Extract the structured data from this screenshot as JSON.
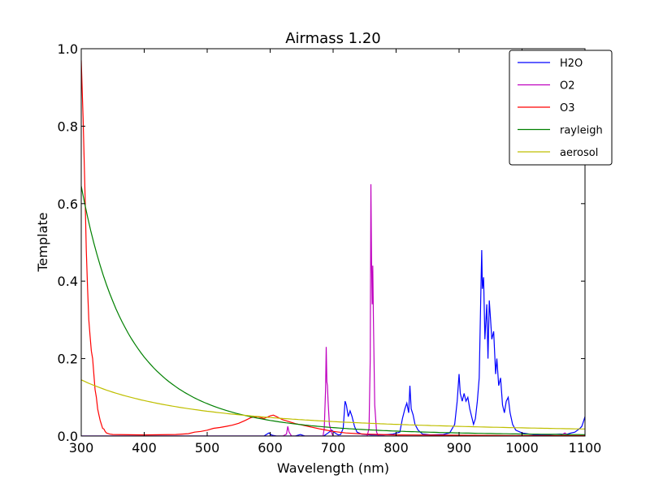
{
  "chart_data": {
    "type": "line",
    "title": "Airmass 1.20",
    "xlabel": "Wavelength (nm)",
    "ylabel": "Template",
    "xlim": [
      300,
      1100
    ],
    "ylim": [
      0.0,
      1.0
    ],
    "xticks": [
      "300",
      "400",
      "500",
      "600",
      "700",
      "800",
      "900",
      "1000",
      "1100"
    ],
    "yticks": [
      "0.0",
      "0.2",
      "0.4",
      "0.6",
      "0.8",
      "1.0"
    ],
    "legend_position": "top-right",
    "grid": false,
    "series": [
      {
        "name": "H2O",
        "color": "#0000ff",
        "points": [
          [
            300,
            0.0
          ],
          [
            580,
            0.0
          ],
          [
            590,
            0.0
          ],
          [
            598,
            0.008
          ],
          [
            603,
            0.002
          ],
          [
            610,
            0.0
          ],
          [
            640,
            0.0
          ],
          [
            648,
            0.004
          ],
          [
            655,
            0.0
          ],
          [
            685,
            0.0
          ],
          [
            692,
            0.008
          ],
          [
            698,
            0.015
          ],
          [
            703,
            0.008
          ],
          [
            708,
            0.003
          ],
          [
            712,
            0.004
          ],
          [
            716,
            0.02
          ],
          [
            719,
            0.09
          ],
          [
            721,
            0.08
          ],
          [
            724,
            0.05
          ],
          [
            727,
            0.065
          ],
          [
            730,
            0.05
          ],
          [
            734,
            0.025
          ],
          [
            738,
            0.01
          ],
          [
            745,
            0.005
          ],
          [
            760,
            0.003
          ],
          [
            780,
            0.003
          ],
          [
            795,
            0.005
          ],
          [
            806,
            0.01
          ],
          [
            810,
            0.045
          ],
          [
            814,
            0.07
          ],
          [
            817,
            0.085
          ],
          [
            820,
            0.06
          ],
          [
            822,
            0.13
          ],
          [
            824,
            0.07
          ],
          [
            827,
            0.055
          ],
          [
            830,
            0.03
          ],
          [
            835,
            0.015
          ],
          [
            842,
            0.005
          ],
          [
            855,
            0.003
          ],
          [
            875,
            0.004
          ],
          [
            885,
            0.008
          ],
          [
            893,
            0.03
          ],
          [
            897,
            0.09
          ],
          [
            900,
            0.16
          ],
          [
            902,
            0.11
          ],
          [
            905,
            0.09
          ],
          [
            908,
            0.11
          ],
          [
            911,
            0.09
          ],
          [
            914,
            0.1
          ],
          [
            917,
            0.07
          ],
          [
            920,
            0.05
          ],
          [
            923,
            0.03
          ],
          [
            926,
            0.045
          ],
          [
            929,
            0.09
          ],
          [
            932,
            0.15
          ],
          [
            935,
            0.4
          ],
          [
            936,
            0.48
          ],
          [
            937,
            0.38
          ],
          [
            939,
            0.41
          ],
          [
            941,
            0.25
          ],
          [
            944,
            0.34
          ],
          [
            946,
            0.2
          ],
          [
            948,
            0.35
          ],
          [
            950,
            0.3
          ],
          [
            952,
            0.25
          ],
          [
            955,
            0.27
          ],
          [
            958,
            0.16
          ],
          [
            960,
            0.2
          ],
          [
            963,
            0.13
          ],
          [
            966,
            0.15
          ],
          [
            969,
            0.08
          ],
          [
            972,
            0.06
          ],
          [
            975,
            0.09
          ],
          [
            978,
            0.1
          ],
          [
            981,
            0.06
          ],
          [
            985,
            0.03
          ],
          [
            990,
            0.015
          ],
          [
            1000,
            0.008
          ],
          [
            1020,
            0.003
          ],
          [
            1040,
            0.003
          ],
          [
            1060,
            0.005
          ],
          [
            1070,
            0.004
          ],
          [
            1078,
            0.008
          ],
          [
            1084,
            0.01
          ],
          [
            1088,
            0.015
          ],
          [
            1092,
            0.02
          ],
          [
            1095,
            0.025
          ],
          [
            1098,
            0.04
          ],
          [
            1100,
            0.05
          ]
        ]
      },
      {
        "name": "O2",
        "color": "#bf00bf",
        "points": [
          [
            300,
            0.0
          ],
          [
            620,
            0.0
          ],
          [
            626,
            0.005
          ],
          [
            628,
            0.025
          ],
          [
            630,
            0.01
          ],
          [
            634,
            0.0
          ],
          [
            684,
            0.0
          ],
          [
            686,
            0.02
          ],
          [
            688,
            0.12
          ],
          [
            689,
            0.23
          ],
          [
            690,
            0.14
          ],
          [
            691,
            0.13
          ],
          [
            692,
            0.09
          ],
          [
            694,
            0.03
          ],
          [
            697,
            0.01
          ],
          [
            700,
            0.0
          ],
          [
            754,
            0.0
          ],
          [
            757,
            0.02
          ],
          [
            759,
            0.2
          ],
          [
            760,
            0.65
          ],
          [
            761,
            0.45
          ],
          [
            762,
            0.34
          ],
          [
            763,
            0.44
          ],
          [
            764,
            0.3
          ],
          [
            766,
            0.08
          ],
          [
            769,
            0.01
          ],
          [
            772,
            0.0
          ],
          [
            1060,
            0.0
          ],
          [
            1068,
            0.008
          ],
          [
            1075,
            0.0
          ],
          [
            1100,
            0.0
          ]
        ]
      },
      {
        "name": "O3",
        "color": "#ff0000",
        "points": [
          [
            300,
            0.97
          ],
          [
            303,
            0.82
          ],
          [
            306,
            0.62
          ],
          [
            308,
            0.48
          ],
          [
            310,
            0.38
          ],
          [
            312,
            0.3
          ],
          [
            314,
            0.26
          ],
          [
            316,
            0.22
          ],
          [
            318,
            0.2
          ],
          [
            320,
            0.16
          ],
          [
            322,
            0.12
          ],
          [
            324,
            0.1
          ],
          [
            326,
            0.07
          ],
          [
            328,
            0.055
          ],
          [
            330,
            0.04
          ],
          [
            332,
            0.03
          ],
          [
            334,
            0.02
          ],
          [
            336,
            0.018
          ],
          [
            338,
            0.012
          ],
          [
            340,
            0.008
          ],
          [
            345,
            0.005
          ],
          [
            350,
            0.004
          ],
          [
            400,
            0.003
          ],
          [
            450,
            0.004
          ],
          [
            470,
            0.006
          ],
          [
            480,
            0.01
          ],
          [
            490,
            0.012
          ],
          [
            500,
            0.015
          ],
          [
            510,
            0.02
          ],
          [
            520,
            0.022
          ],
          [
            530,
            0.025
          ],
          [
            540,
            0.028
          ],
          [
            550,
            0.033
          ],
          [
            560,
            0.04
          ],
          [
            570,
            0.048
          ],
          [
            580,
            0.05
          ],
          [
            590,
            0.045
          ],
          [
            600,
            0.052
          ],
          [
            605,
            0.054
          ],
          [
            610,
            0.05
          ],
          [
            620,
            0.042
          ],
          [
            640,
            0.032
          ],
          [
            660,
            0.025
          ],
          [
            680,
            0.018
          ],
          [
            700,
            0.012
          ],
          [
            720,
            0.008
          ],
          [
            750,
            0.005
          ],
          [
            800,
            0.003
          ],
          [
            900,
            0.002
          ],
          [
            1000,
            0.001
          ],
          [
            1100,
            0.001
          ]
        ]
      },
      {
        "name": "rayleigh",
        "color": "#008000",
        "func": "rayleigh"
      },
      {
        "name": "aerosol",
        "color": "#bfbf00",
        "func": "aerosol"
      }
    ]
  }
}
